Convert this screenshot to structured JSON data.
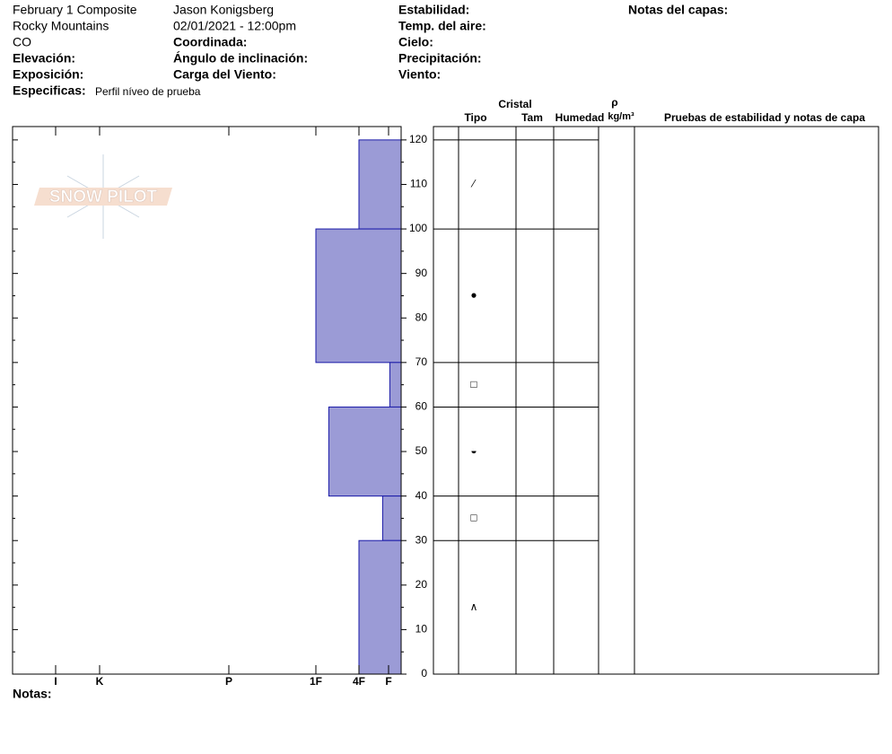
{
  "header": {
    "title": "February 1 Composite",
    "range": "Rocky Mountains",
    "state": "CO",
    "elevation": "Elevación:",
    "aspect": "Exposición:",
    "specifics": "Especificas:",
    "specifics_value": "Perfil níveo de prueba",
    "observer": "Jason Konigsberg",
    "datetime": "02/01/2021 - 12:00pm",
    "coordinates": "Coordinada:",
    "slope": "Ángulo de inclinación:",
    "wind_load": "Carga del Viento:",
    "stability": "Estabilidad:",
    "air_temp": "Temp. del aire:",
    "sky": "Cielo:",
    "precipitation": "Precipitación:",
    "wind": "Viento:",
    "layer_notes": "Notas del capas:",
    "notes": "Notas:",
    "logo": "SNOW PILOT"
  },
  "table": {
    "crystal": "Cristal",
    "type": "Tipo",
    "size": "Tam",
    "moisture": "Humedad",
    "density": "ρ",
    "density_unit": "kg/m³",
    "tests": "Pruebas de estabilidad y notas de capa"
  },
  "chart_data": {
    "type": "snow-profile",
    "layer_bottom": [
      100,
      70,
      60,
      40,
      30,
      0
    ],
    "layer_top": [
      120,
      100,
      70,
      60,
      40,
      30
    ],
    "values": [
      2,
      3,
      0.9,
      2.7,
      1.2,
      2
    ],
    "grain_types": [
      "⁄",
      "●",
      "□",
      "◒",
      "□",
      "∧"
    ],
    "color": "#9b9bd6",
    "xlim": [
      0,
      7
    ],
    "xticks": [
      {
        "value": 6,
        "label": "I"
      },
      {
        "value": 5,
        "label": "K"
      },
      {
        "value": 4,
        "label": "P"
      },
      {
        "value": 3,
        "label": "1F"
      },
      {
        "value": 2,
        "label": "4F"
      },
      {
        "value": 1,
        "label": "F"
      }
    ],
    "ylim": [
      0,
      123
    ],
    "yticks": [
      0,
      10,
      20,
      30,
      40,
      50,
      60,
      70,
      80,
      90,
      100,
      110,
      120
    ]
  }
}
